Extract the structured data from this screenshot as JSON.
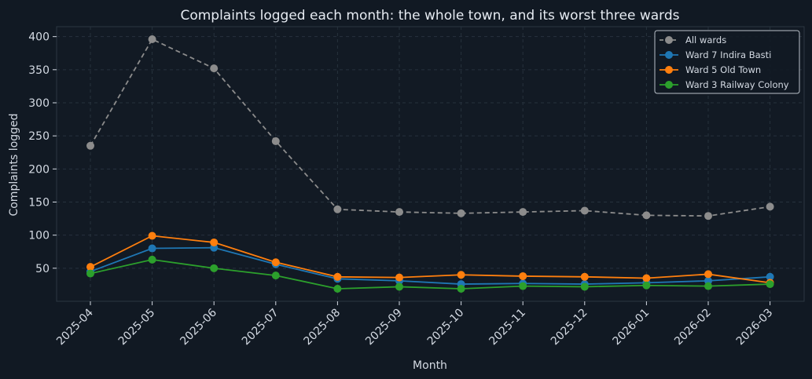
{
  "chart_data": {
    "type": "line",
    "title": "Complaints logged each month: the whole town, and its worst three wards",
    "xlabel": "Month",
    "ylabel": "Complaints logged",
    "categories": [
      "2025-04",
      "2025-05",
      "2025-06",
      "2025-07",
      "2025-08",
      "2025-09",
      "2025-10",
      "2025-11",
      "2025-12",
      "2026-01",
      "2026-02",
      "2026-03"
    ],
    "yticks": [
      50,
      100,
      150,
      200,
      250,
      300,
      350,
      400
    ],
    "ylim": [
      0,
      415
    ],
    "grid": true,
    "legend_position": "top-right",
    "series": [
      {
        "name": "All wards",
        "color": "#8c8c8c",
        "dashed": true,
        "values": [
          235,
          396,
          352,
          242,
          139,
          135,
          133,
          135,
          137,
          130,
          129,
          143
        ]
      },
      {
        "name": "Ward 7 Indira Basti",
        "color": "#1f77b4",
        "dashed": false,
        "values": [
          45,
          80,
          81,
          56,
          34,
          31,
          26,
          27,
          26,
          28,
          31,
          37
        ]
      },
      {
        "name": "Ward 5 Old Town",
        "color": "#ff7f0e",
        "dashed": false,
        "values": [
          52,
          99,
          89,
          59,
          37,
          36,
          40,
          38,
          37,
          35,
          41,
          28
        ]
      },
      {
        "name": "Ward 3 Railway Colony",
        "color": "#2ca02c",
        "dashed": false,
        "values": [
          42,
          63,
          50,
          39,
          19,
          22,
          19,
          23,
          22,
          24,
          23,
          26
        ]
      }
    ]
  }
}
